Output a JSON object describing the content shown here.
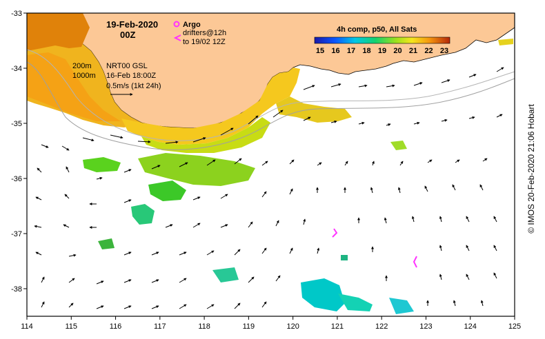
{
  "title": {
    "date": "19-Feb-2020",
    "time": "00Z"
  },
  "argo": {
    "label": "Argo",
    "color": "#ff33ff"
  },
  "drifters": {
    "line1": "drifters@12h",
    "line2": "to 19/02 12Z",
    "color": "#ff33ff"
  },
  "isobaths": {
    "a": "200m",
    "b": "1000m"
  },
  "product": {
    "name": "NRT00 GSL",
    "stamp": "16-Feb 18:00Z",
    "scale": "0.5m/s (1kt 24h)"
  },
  "colorbar": {
    "title": "4h comp, p50, All Sats",
    "ticks": [
      "15",
      "16",
      "17",
      "18",
      "19",
      "20",
      "21",
      "22",
      "23"
    ]
  },
  "axes": {
    "x": [
      "114",
      "115",
      "116",
      "117",
      "118",
      "119",
      "120",
      "121",
      "122",
      "123",
      "124",
      "125"
    ],
    "y": [
      "-33",
      "-34",
      "-35",
      "-36",
      "-37",
      "-38"
    ],
    "lon_range": [
      114,
      125
    ],
    "lat_range": [
      -33,
      -38.5
    ]
  },
  "colors": {
    "land": "#fcc896",
    "coast": "#000000",
    "frame": "#000000"
  },
  "credit": "© IMOS 20-Feb-2020 21:06 Hobart"
}
